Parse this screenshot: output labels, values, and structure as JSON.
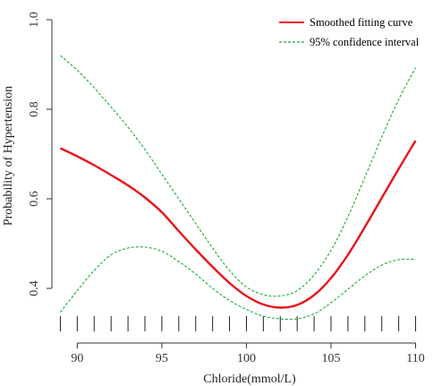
{
  "chart_data": {
    "type": "line",
    "title": "",
    "xlabel": "Chloride(mmol/L)",
    "ylabel": "Probability of  Hypertension",
    "xlim": [
      88.5,
      110.5
    ],
    "ylim": [
      0.3,
      1.02
    ],
    "x_ticks": [
      90,
      95,
      100,
      105,
      110
    ],
    "y_ticks": [
      0.4,
      0.6,
      0.8,
      1.0
    ],
    "y_tick_labels": [
      "0.4",
      "0.6",
      "0.8",
      "1.0"
    ],
    "grid": false,
    "legend_position": "top-right",
    "rug": [
      89,
      90,
      91,
      92,
      93,
      94,
      95,
      96,
      97,
      98,
      99,
      100,
      101,
      102,
      103,
      104,
      105,
      106,
      107,
      108,
      109,
      110
    ],
    "series": [
      {
        "name": "Smoothed fitting curve",
        "color": "#e8141b",
        "style": "solid",
        "x": [
          89,
          90,
          91,
          92,
          93,
          94,
          95,
          96,
          97,
          98,
          99,
          100,
          101,
          102,
          103,
          104,
          105,
          106,
          107,
          108,
          109,
          110
        ],
        "y": [
          0.713,
          0.695,
          0.675,
          0.653,
          0.63,
          0.603,
          0.57,
          0.528,
          0.487,
          0.448,
          0.412,
          0.383,
          0.364,
          0.357,
          0.363,
          0.385,
          0.423,
          0.475,
          0.537,
          0.602,
          0.667,
          0.73
        ]
      },
      {
        "name": "95% confidence interval",
        "color": "#1aaa35",
        "style": "dashed",
        "x": [
          89,
          90,
          91,
          92,
          93,
          94,
          95,
          96,
          97,
          98,
          99,
          100,
          101,
          102,
          103,
          104,
          105,
          106,
          107,
          108,
          109,
          110
        ],
        "y": [
          0.92,
          0.887,
          0.848,
          0.805,
          0.76,
          0.71,
          0.655,
          0.6,
          0.545,
          0.49,
          0.44,
          0.403,
          0.386,
          0.383,
          0.395,
          0.43,
          0.485,
          0.56,
          0.648,
          0.738,
          0.822,
          0.893
        ]
      },
      {
        "name": "",
        "color": "#1aaa35",
        "style": "dashed",
        "x": [
          89,
          90,
          91,
          92,
          93,
          94,
          95,
          96,
          97,
          98,
          99,
          100,
          101,
          102,
          103,
          104,
          105,
          106,
          107,
          108,
          109,
          110
        ],
        "y": [
          0.347,
          0.395,
          0.44,
          0.475,
          0.49,
          0.492,
          0.483,
          0.46,
          0.432,
          0.4,
          0.373,
          0.353,
          0.338,
          0.332,
          0.332,
          0.343,
          0.368,
          0.398,
          0.428,
          0.452,
          0.464,
          0.465
        ]
      }
    ]
  }
}
